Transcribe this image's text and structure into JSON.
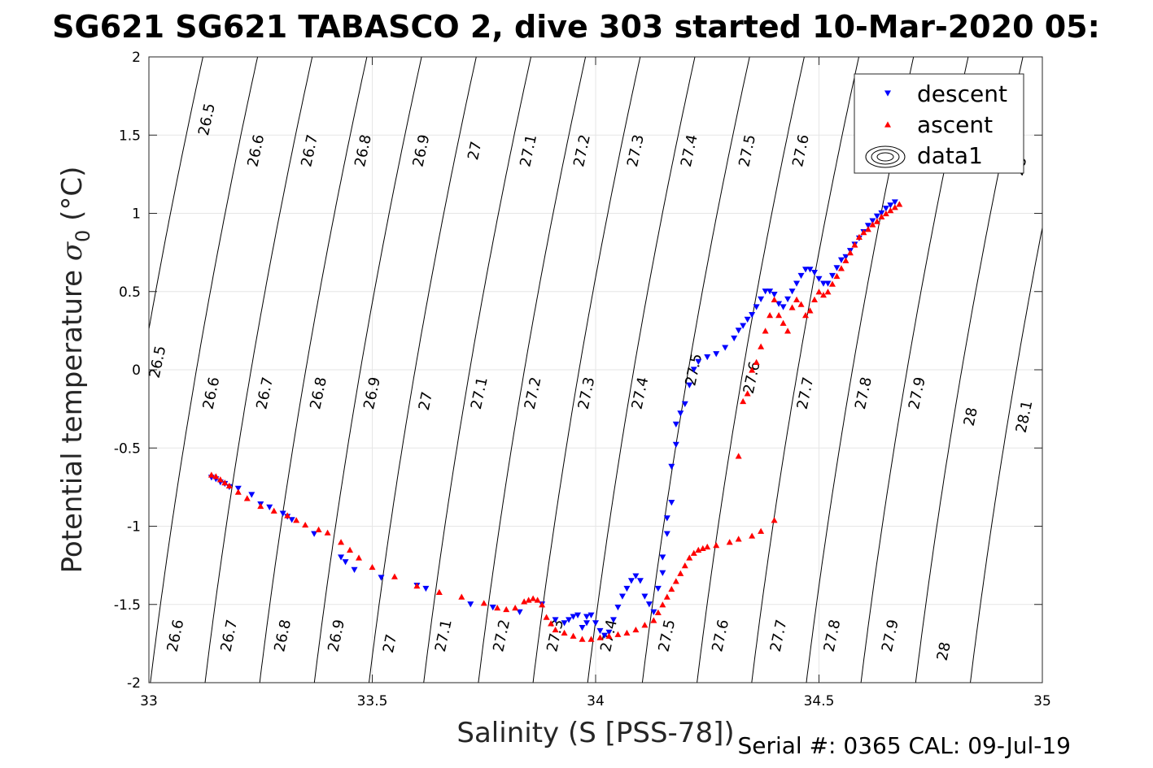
{
  "title": "SG621 SG621 TABASCO 2, dive 303 started 10-Mar-2020 05:",
  "footer": "Serial #: 0365  CAL: 09-Jul-19",
  "chart_data": {
    "type": "scatter",
    "xlabel": "Salinity (S [PSS-78])",
    "ylabel_main": "Potential temperature ",
    "ylabel_sigma": "σ",
    "ylabel_sub": "0",
    "ylabel_unit": " (°C)",
    "xlim": [
      33,
      35
    ],
    "ylim": [
      -2,
      2
    ],
    "x_ticks": [
      33,
      33.5,
      34,
      34.5,
      35
    ],
    "x_tick_labels": [
      "33",
      "33.5",
      "34",
      "34.5",
      "35"
    ],
    "y_ticks": [
      -2,
      -1.5,
      -1,
      -0.5,
      0,
      0.5,
      1,
      1.5,
      2
    ],
    "y_tick_labels": [
      "-2",
      "-1.5",
      "-1",
      "-0.5",
      "0",
      "0.5",
      "1",
      "1.5",
      "2"
    ],
    "grid": true,
    "legend_position": "top-right",
    "legend": [
      {
        "label": "descent",
        "marker": "triangle-down",
        "color": "#0000ff"
      },
      {
        "label": "ascent",
        "marker": "triangle-up",
        "color": "#ff0000"
      },
      {
        "label": "data1",
        "marker": "contour",
        "color": "#000000"
      }
    ],
    "contours": {
      "levels": [
        26.5,
        26.6,
        26.7,
        26.8,
        26.9,
        27,
        27.1,
        27.2,
        27.3,
        27.4,
        27.5,
        27.6,
        27.7,
        27.8,
        27.9,
        28,
        28.1
      ],
      "level_labels": [
        "26.5",
        "26.6",
        "26.7",
        "26.8",
        "26.9",
        "27",
        "27.1",
        "27.2",
        "27.3",
        "27.4",
        "27.5",
        "27.6",
        "27.7",
        "27.8",
        "27.9",
        "28",
        "28.1"
      ],
      "labels": [
        {
          "text": "26.5",
          "x": 33.13,
          "y": 1.6
        },
        {
          "text": "26.6",
          "x": 33.24,
          "y": 1.4
        },
        {
          "text": "26.7",
          "x": 33.36,
          "y": 1.4
        },
        {
          "text": "26.8",
          "x": 33.48,
          "y": 1.4
        },
        {
          "text": "26.9",
          "x": 33.61,
          "y": 1.4
        },
        {
          "text": "27",
          "x": 33.73,
          "y": 1.4
        },
        {
          "text": "27.1",
          "x": 33.85,
          "y": 1.4
        },
        {
          "text": "27.2",
          "x": 33.97,
          "y": 1.4
        },
        {
          "text": "27.3",
          "x": 34.09,
          "y": 1.4
        },
        {
          "text": "27.4",
          "x": 34.21,
          "y": 1.4
        },
        {
          "text": "27.5",
          "x": 34.34,
          "y": 1.4
        },
        {
          "text": "27.6",
          "x": 34.46,
          "y": 1.4
        },
        {
          "text": "28",
          "x": 34.95,
          "y": 1.3
        },
        {
          "text": "26.5",
          "x": 33.02,
          "y": 0.05
        },
        {
          "text": "26.6",
          "x": 33.14,
          "y": -0.15
        },
        {
          "text": "26.7",
          "x": 33.26,
          "y": -0.15
        },
        {
          "text": "26.8",
          "x": 33.38,
          "y": -0.15
        },
        {
          "text": "26.9",
          "x": 33.5,
          "y": -0.15
        },
        {
          "text": "27",
          "x": 33.62,
          "y": -0.2
        },
        {
          "text": "27.1",
          "x": 33.74,
          "y": -0.15
        },
        {
          "text": "27.2",
          "x": 33.86,
          "y": -0.15
        },
        {
          "text": "27.3",
          "x": 33.98,
          "y": -0.15
        },
        {
          "text": "27.4",
          "x": 34.1,
          "y": -0.15
        },
        {
          "text": "27.5",
          "x": 34.22,
          "y": 0.0
        },
        {
          "text": "27.6",
          "x": 34.35,
          "y": -0.05
        },
        {
          "text": "27.7",
          "x": 34.47,
          "y": -0.15
        },
        {
          "text": "27.8",
          "x": 34.6,
          "y": -0.15
        },
        {
          "text": "27.9",
          "x": 34.72,
          "y": -0.15
        },
        {
          "text": "28",
          "x": 34.84,
          "y": -0.3
        },
        {
          "text": "28.1",
          "x": 34.96,
          "y": -0.3
        },
        {
          "text": "26.6",
          "x": 33.06,
          "y": -1.7
        },
        {
          "text": "26.7",
          "x": 33.18,
          "y": -1.7
        },
        {
          "text": "26.8",
          "x": 33.3,
          "y": -1.7
        },
        {
          "text": "26.9",
          "x": 33.42,
          "y": -1.7
        },
        {
          "text": "27",
          "x": 33.54,
          "y": -1.75
        },
        {
          "text": "27.1",
          "x": 33.66,
          "y": -1.7
        },
        {
          "text": "27.2",
          "x": 33.79,
          "y": -1.7
        },
        {
          "text": "27.3",
          "x": 33.91,
          "y": -1.7
        },
        {
          "text": "27.4",
          "x": 34.03,
          "y": -1.7
        },
        {
          "text": "27.5",
          "x": 34.16,
          "y": -1.7
        },
        {
          "text": "27.6",
          "x": 34.28,
          "y": -1.7
        },
        {
          "text": "27.7",
          "x": 34.41,
          "y": -1.7
        },
        {
          "text": "27.8",
          "x": 34.53,
          "y": -1.7
        },
        {
          "text": "27.9",
          "x": 34.66,
          "y": -1.7
        },
        {
          "text": "28",
          "x": 34.78,
          "y": -1.8
        }
      ]
    },
    "series": [
      {
        "name": "descent",
        "marker": "triangle-down",
        "color": "#0000ff",
        "x": [
          33.14,
          33.15,
          33.16,
          33.17,
          33.18,
          33.2,
          33.23,
          33.25,
          33.27,
          33.3,
          33.31,
          33.32,
          33.37,
          33.43,
          33.44,
          33.46,
          33.52,
          33.6,
          33.62,
          33.72,
          33.77,
          33.83,
          33.88,
          33.91,
          33.93,
          33.94,
          33.95,
          33.96,
          33.97,
          33.98,
          33.98,
          33.99,
          34.0,
          34.01,
          34.02,
          34.03,
          34.04,
          34.05,
          34.06,
          34.07,
          34.08,
          34.09,
          34.1,
          34.11,
          34.12,
          34.13,
          34.14,
          34.15,
          34.15,
          34.16,
          34.16,
          34.17,
          34.17,
          34.18,
          34.18,
          34.19,
          34.2,
          34.21,
          34.22,
          34.23,
          34.25,
          34.27,
          34.29,
          34.31,
          34.32,
          34.33,
          34.34,
          34.35,
          34.36,
          34.37,
          34.38,
          34.39,
          34.4,
          34.41,
          34.42,
          34.43,
          34.44,
          34.45,
          34.46,
          34.47,
          34.48,
          34.49,
          34.5,
          34.51,
          34.52,
          34.53,
          34.54,
          34.55,
          34.56,
          34.57,
          34.58,
          34.59,
          34.6,
          34.61,
          34.62,
          34.63,
          34.64,
          34.65,
          34.66,
          34.67
        ],
        "y": [
          -0.69,
          -0.7,
          -0.72,
          -0.73,
          -0.75,
          -0.76,
          -0.8,
          -0.86,
          -0.88,
          -0.92,
          -0.94,
          -0.96,
          -1.05,
          -1.2,
          -1.23,
          -1.28,
          -1.33,
          -1.38,
          -1.4,
          -1.5,
          -1.52,
          -1.55,
          -1.5,
          -1.6,
          -1.62,
          -1.6,
          -1.58,
          -1.57,
          -1.65,
          -1.58,
          -1.62,
          -1.57,
          -1.62,
          -1.67,
          -1.7,
          -1.68,
          -1.6,
          -1.52,
          -1.45,
          -1.4,
          -1.35,
          -1.32,
          -1.35,
          -1.45,
          -1.5,
          -1.55,
          -1.4,
          -1.3,
          -1.2,
          -1.05,
          -0.95,
          -0.85,
          -0.62,
          -0.48,
          -0.35,
          -0.28,
          -0.22,
          -0.1,
          0.0,
          0.05,
          0.08,
          0.1,
          0.14,
          0.2,
          0.25,
          0.28,
          0.32,
          0.35,
          0.4,
          0.45,
          0.5,
          0.5,
          0.48,
          0.42,
          0.4,
          0.45,
          0.5,
          0.55,
          0.6,
          0.64,
          0.64,
          0.62,
          0.58,
          0.55,
          0.55,
          0.6,
          0.65,
          0.7,
          0.72,
          0.76,
          0.8,
          0.84,
          0.88,
          0.92,
          0.95,
          0.98,
          1.0,
          1.03,
          1.05,
          1.07
        ]
      },
      {
        "name": "ascent",
        "marker": "triangle-up",
        "color": "#ff0000",
        "x": [
          33.14,
          33.15,
          33.16,
          33.17,
          33.18,
          33.2,
          33.22,
          33.25,
          33.28,
          33.31,
          33.33,
          33.35,
          33.38,
          33.4,
          33.43,
          33.45,
          33.47,
          33.5,
          33.55,
          33.6,
          33.65,
          33.7,
          33.75,
          33.78,
          33.8,
          33.82,
          33.84,
          33.85,
          33.86,
          33.87,
          33.88,
          33.89,
          33.9,
          33.91,
          33.93,
          33.95,
          33.97,
          33.99,
          34.01,
          34.03,
          34.05,
          34.07,
          34.09,
          34.11,
          34.13,
          34.14,
          34.15,
          34.16,
          34.17,
          34.18,
          34.19,
          34.2,
          34.21,
          34.22,
          34.23,
          34.24,
          34.25,
          34.27,
          34.3,
          34.32,
          34.35,
          34.37,
          34.4,
          34.32,
          34.33,
          34.34,
          34.35,
          34.36,
          34.37,
          34.38,
          34.39,
          34.4,
          34.41,
          34.42,
          34.43,
          34.44,
          34.45,
          34.46,
          34.47,
          34.48,
          34.49,
          34.5,
          34.51,
          34.52,
          34.53,
          34.54,
          34.55,
          34.56,
          34.57,
          34.58,
          34.59,
          34.6,
          34.61,
          34.62,
          34.63,
          34.64,
          34.65,
          34.66,
          34.67,
          34.68
        ],
        "y": [
          -0.67,
          -0.68,
          -0.7,
          -0.72,
          -0.74,
          -0.78,
          -0.82,
          -0.87,
          -0.9,
          -0.93,
          -0.96,
          -0.99,
          -1.02,
          -1.04,
          -1.1,
          -1.15,
          -1.2,
          -1.26,
          -1.32,
          -1.38,
          -1.42,
          -1.45,
          -1.49,
          -1.52,
          -1.53,
          -1.52,
          -1.48,
          -1.47,
          -1.46,
          -1.47,
          -1.5,
          -1.58,
          -1.62,
          -1.66,
          -1.68,
          -1.7,
          -1.72,
          -1.72,
          -1.71,
          -1.7,
          -1.69,
          -1.68,
          -1.66,
          -1.63,
          -1.6,
          -1.55,
          -1.5,
          -1.45,
          -1.4,
          -1.35,
          -1.3,
          -1.25,
          -1.2,
          -1.17,
          -1.15,
          -1.14,
          -1.13,
          -1.12,
          -1.1,
          -1.08,
          -1.06,
          -1.03,
          -0.96,
          -0.55,
          -0.2,
          -0.15,
          0.0,
          0.05,
          0.15,
          0.25,
          0.35,
          0.45,
          0.35,
          0.3,
          0.25,
          0.4,
          0.45,
          0.42,
          0.35,
          0.38,
          0.45,
          0.5,
          0.48,
          0.5,
          0.55,
          0.6,
          0.65,
          0.7,
          0.75,
          0.8,
          0.85,
          0.88,
          0.9,
          0.93,
          0.95,
          0.98,
          1.0,
          1.02,
          1.04,
          1.06
        ]
      }
    ]
  }
}
